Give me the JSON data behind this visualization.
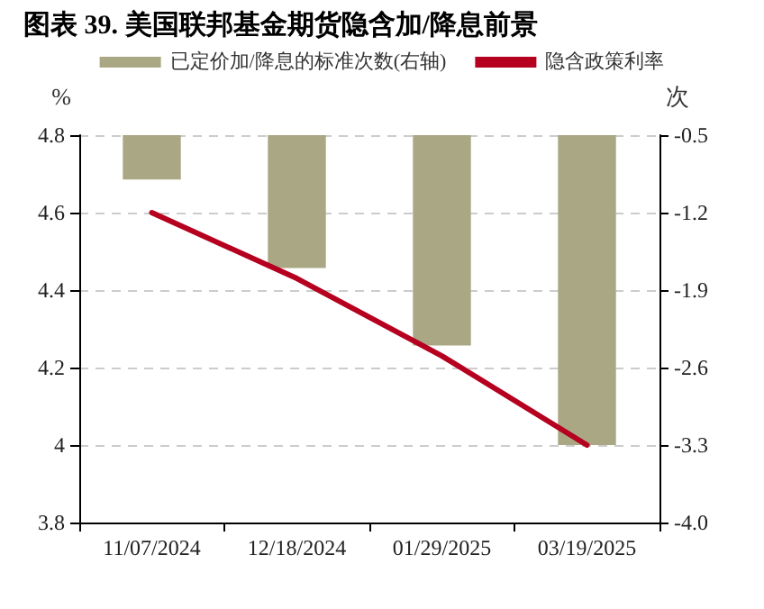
{
  "chart_data": {
    "type": "bar",
    "title": "图表 39. 美国联邦基金期货隐含加/降息前景",
    "categories": [
      "11/07/2024",
      "12/18/2024",
      "01/29/2025",
      "03/19/2025"
    ],
    "series": [
      {
        "name": "已定价加/降息的标准次数(右轴)",
        "axis": "y2",
        "color": "#aaa884",
        "values": [
          -0.9,
          -1.7,
          -2.4,
          -3.3
        ]
      },
      {
        "name": "隐含政策利率",
        "type": "line",
        "color": "#b5001f",
        "values": [
          4.6,
          4.43,
          4.23,
          4.0
        ]
      }
    ],
    "ylabel": "%",
    "y2label": "次",
    "ylim": [
      3.8,
      4.8
    ],
    "yticks": [
      3.8,
      4,
      4.2,
      4.4,
      4.6,
      4.8
    ],
    "y2lim": [
      -4.0,
      -0.5
    ],
    "y2ticks": [
      {
        "value": -4.0,
        "label": "-4.0"
      },
      -3.3,
      -2.6,
      -1.9,
      -1.2,
      -0.5
    ],
    "grid": "y",
    "legend": "top",
    "marker": "none",
    "line_style": "solid"
  }
}
